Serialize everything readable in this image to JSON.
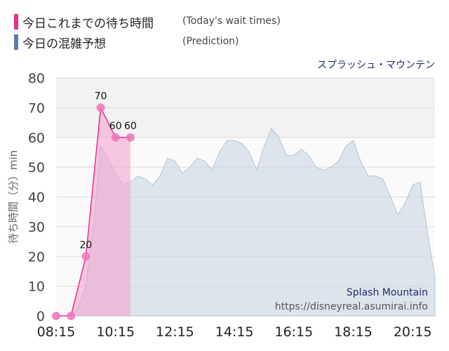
{
  "legend": {
    "today_label": "今日これまでの待ち時間",
    "today_en": "(Today's wait times)",
    "prediction_label": "今日の混雑予想",
    "prediction_en": "(Prediction)",
    "today_color": "#ee2b8f",
    "prediction_color": "#5b7ea8"
  },
  "chart_data": {
    "type": "area",
    "title": "スプラッシュ・マウンテン",
    "ylabel": "待ち時間（分）min",
    "xlabel": "",
    "ylim": [
      0,
      80
    ],
    "yticks": [
      0,
      10,
      20,
      30,
      40,
      50,
      60,
      70,
      80
    ],
    "xlim": [
      "08:15",
      "21:00"
    ],
    "xticks": [
      "08:15",
      "10:15",
      "12:15",
      "14:15",
      "16:15",
      "18:15",
      "20:15"
    ],
    "grid": true,
    "watermark": {
      "name": "Splash Mountain",
      "url": "https://disneyreal.asumirai.info"
    },
    "series": [
      {
        "name": "今日の混雑予想",
        "color": "#c9d6e3",
        "points": [
          [
            "08:15",
            0
          ],
          [
            "08:45",
            0
          ],
          [
            "09:00",
            3
          ],
          [
            "09:15",
            10
          ],
          [
            "09:30",
            30
          ],
          [
            "09:45",
            57
          ],
          [
            "10:00",
            53
          ],
          [
            "10:15",
            48
          ],
          [
            "10:30",
            44
          ],
          [
            "10:45",
            45
          ],
          [
            "11:00",
            47
          ],
          [
            "11:15",
            46
          ],
          [
            "11:30",
            44
          ],
          [
            "11:45",
            47
          ],
          [
            "12:00",
            53
          ],
          [
            "12:15",
            52
          ],
          [
            "12:30",
            48
          ],
          [
            "12:45",
            50
          ],
          [
            "13:00",
            53
          ],
          [
            "13:15",
            52
          ],
          [
            "13:30",
            49
          ],
          [
            "13:45",
            55
          ],
          [
            "14:00",
            59
          ],
          [
            "14:15",
            59
          ],
          [
            "14:30",
            58
          ],
          [
            "14:45",
            55
          ],
          [
            "15:00",
            49
          ],
          [
            "15:15",
            57
          ],
          [
            "15:30",
            63
          ],
          [
            "15:45",
            60
          ],
          [
            "16:00",
            54
          ],
          [
            "16:15",
            54
          ],
          [
            "16:30",
            56
          ],
          [
            "16:45",
            54
          ],
          [
            "17:00",
            50
          ],
          [
            "17:15",
            49
          ],
          [
            "17:30",
            50
          ],
          [
            "17:45",
            52
          ],
          [
            "18:00",
            57
          ],
          [
            "18:15",
            59
          ],
          [
            "18:30",
            52
          ],
          [
            "18:45",
            47
          ],
          [
            "19:00",
            47
          ],
          [
            "19:15",
            46
          ],
          [
            "19:30",
            40
          ],
          [
            "19:45",
            34
          ],
          [
            "20:00",
            38
          ],
          [
            "20:15",
            44
          ],
          [
            "20:30",
            45
          ],
          [
            "20:45",
            28
          ],
          [
            "21:00",
            13
          ]
        ]
      },
      {
        "name": "今日これまでの待ち時間",
        "color": "#ee2b8f",
        "points": [
          [
            "08:15",
            0
          ],
          [
            "08:45",
            0
          ],
          [
            "09:15",
            20
          ],
          [
            "09:45",
            70
          ],
          [
            "10:15",
            60
          ],
          [
            "10:45",
            60
          ]
        ],
        "labels": [
          [
            "09:15",
            "20"
          ],
          [
            "09:45",
            "70"
          ],
          [
            "10:15",
            "60"
          ],
          [
            "10:45",
            "60"
          ]
        ]
      }
    ]
  }
}
